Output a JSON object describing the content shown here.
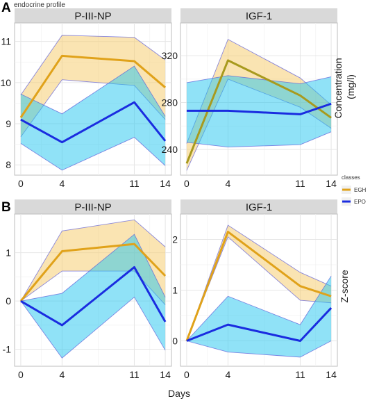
{
  "figure": {
    "caption": "endocrine profile",
    "section_a": "A",
    "section_b": "B",
    "xlabel": "Days",
    "ylabel_a": "Concentration\n(mg/l)",
    "ylabel_b": "Z-score",
    "legend": {
      "title": "classes",
      "items": [
        {
          "label": "EGH",
          "color": "#E0A21A"
        },
        {
          "label": "EPO",
          "color": "#1A2CE0"
        }
      ]
    }
  },
  "chart_data": [
    {
      "type": "line",
      "panel": "A",
      "title": "P-III-NP",
      "x": [
        0,
        4,
        11,
        14
      ],
      "x_ticks": [
        "0",
        "4",
        "11",
        "14"
      ],
      "y_ticks": [
        8,
        9,
        10,
        11
      ],
      "ylim": [
        7.75,
        11.45
      ],
      "series": [
        {
          "name": "EGH",
          "color": "#E0A21A",
          "fill": "#F5C966",
          "values": [
            9.15,
            10.65,
            10.52,
            9.88
          ],
          "lower": [
            8.68,
            10.07,
            9.93,
            9.1
          ],
          "upper": [
            9.7,
            11.15,
            11.1,
            10.55
          ]
        },
        {
          "name": "EPO",
          "color": "#1A2CE0",
          "fill": "#22C6F0",
          "values": [
            9.1,
            8.55,
            9.52,
            8.58
          ],
          "lower": [
            8.52,
            7.87,
            8.67,
            7.98
          ],
          "upper": [
            9.72,
            9.24,
            10.4,
            9.18
          ]
        }
      ]
    },
    {
      "type": "line",
      "panel": "A",
      "title": "IGF-1",
      "x": [
        0,
        4,
        11,
        14
      ],
      "x_ticks": [
        "0",
        "4",
        "11",
        "14"
      ],
      "y_ticks": [
        240,
        280,
        320
      ],
      "ylim": [
        218,
        348
      ],
      "series": [
        {
          "name": "EGH",
          "color": "#A89A1E",
          "fill": "#F5C966",
          "values": [
            228,
            316,
            286,
            267
          ],
          "lower": [
            222,
            300,
            276,
            258
          ],
          "upper": [
            245,
            334,
            301,
            278
          ]
        },
        {
          "name": "EPO",
          "color": "#1A2CE0",
          "fill": "#22C6F0",
          "values": [
            273,
            273,
            270,
            279
          ],
          "lower": [
            246,
            242,
            244,
            255
          ],
          "upper": [
            297,
            303,
            296,
            302
          ]
        }
      ]
    },
    {
      "type": "line",
      "panel": "B",
      "title": "P-III-NP",
      "x": [
        0,
        4,
        11,
        14
      ],
      "x_ticks": [
        "0",
        "4",
        "11",
        "14"
      ],
      "y_ticks": [
        -1,
        0,
        1
      ],
      "ylim": [
        -1.35,
        1.8
      ],
      "series": [
        {
          "name": "EGH",
          "color": "#E0A21A",
          "fill": "#F5C966",
          "values": [
            0,
            1.03,
            1.18,
            0.52
          ],
          "lower": [
            0,
            0.62,
            0.62,
            -0.08
          ],
          "upper": [
            0,
            1.45,
            1.68,
            1.12
          ]
        },
        {
          "name": "EPO",
          "color": "#1A2CE0",
          "fill": "#22C6F0",
          "values": [
            0,
            -0.5,
            0.7,
            -0.43
          ],
          "lower": [
            0,
            -1.18,
            0.08,
            -1.02
          ],
          "upper": [
            0,
            0.16,
            1.38,
            0.08
          ]
        }
      ]
    },
    {
      "type": "line",
      "panel": "B",
      "title": "IGF-1",
      "x": [
        0,
        4,
        11,
        14
      ],
      "x_ticks": [
        "0",
        "4",
        "11",
        "14"
      ],
      "y_ticks": [
        0,
        1,
        2
      ],
      "ylim": [
        -0.5,
        2.5
      ],
      "series": [
        {
          "name": "EGH",
          "color": "#E0A21A",
          "fill": "#F5C966",
          "values": [
            0,
            2.15,
            1.08,
            0.88
          ],
          "lower": [
            0,
            2.05,
            0.8,
            0.75
          ],
          "upper": [
            0,
            2.28,
            1.35,
            1.08
          ]
        },
        {
          "name": "EPO",
          "color": "#1A2CE0",
          "fill": "#22C6F0",
          "values": [
            0,
            0.32,
            0,
            0.65
          ],
          "lower": [
            0,
            -0.22,
            -0.32,
            0
          ],
          "upper": [
            0,
            0.88,
            0.32,
            1.28
          ]
        }
      ]
    }
  ]
}
